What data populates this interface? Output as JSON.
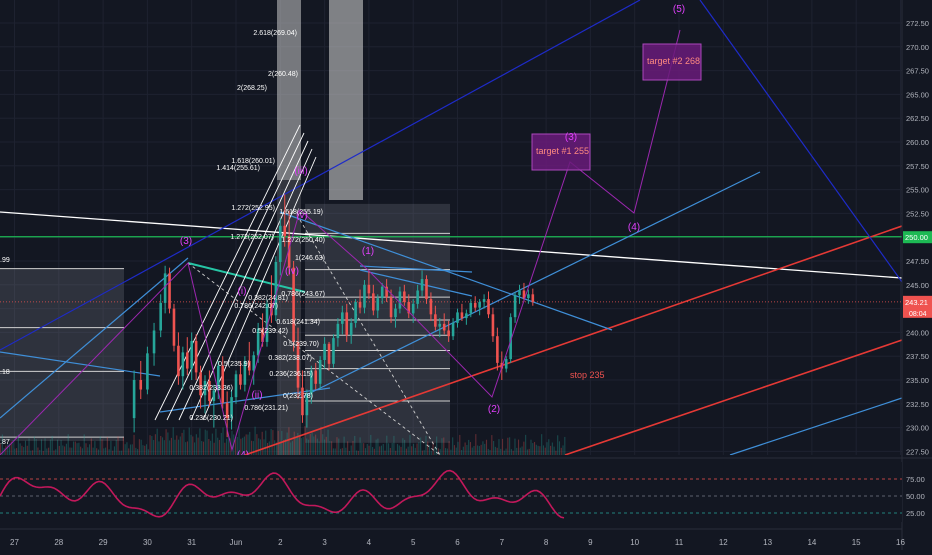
{
  "chart_data": {
    "type": "candlestick",
    "symbol_note": "",
    "price_axis": {
      "ylim": [
        225.0,
        276.0
      ],
      "ticks": [
        227.5,
        230.0,
        232.5,
        235.0,
        237.5,
        240.0,
        242.5,
        245.0,
        247.5,
        250.0,
        252.5,
        255.0,
        257.5,
        260.0,
        262.5,
        265.0,
        267.5,
        270.0,
        272.5
      ],
      "tick_labels": [
        "227.50",
        "230.00",
        "232.50",
        "235.00",
        "237.50",
        "240.00",
        "242.50",
        "245.00",
        "247.50",
        "250.00",
        "252.50",
        "255.00",
        "257.50",
        "260.00",
        "262.50",
        "265.00",
        "267.50",
        "270.00",
        "272.50"
      ],
      "current_price_label": "243.21",
      "current_price": 243.21,
      "countdown_label": "08:04",
      "green_level_label": "250.00",
      "green_level": 250.0
    },
    "time_axis": {
      "labels": [
        "27",
        "28",
        "29",
        "30",
        "31",
        "Jun",
        "2",
        "3",
        "4",
        "5",
        "6",
        "7",
        "8",
        "9",
        "10",
        "11",
        "12",
        "13",
        "14",
        "15",
        "16"
      ],
      "days": [
        -5,
        -4,
        -3,
        -2,
        -1,
        0,
        1,
        2,
        3,
        4,
        5,
        6,
        7,
        8,
        9,
        10,
        11,
        12,
        13,
        14,
        15
      ]
    },
    "left_edge_labels": [
      ".99",
      ".18",
      ".87"
    ],
    "candles": [
      [
        -2.3,
        231.0,
        236.0,
        229.5,
        235.0
      ],
      [
        -2.15,
        235.0,
        237.0,
        233.0,
        234.0
      ],
      [
        -2.0,
        234.0,
        238.5,
        233.5,
        237.8
      ],
      [
        -1.85,
        237.8,
        241.0,
        236.5,
        240.2
      ],
      [
        -1.7,
        240.2,
        244.0,
        239.5,
        243.1
      ],
      [
        -1.6,
        243.1,
        247.0,
        242.0,
        246.2
      ],
      [
        -1.5,
        246.2,
        246.8,
        242.0,
        242.5
      ],
      [
        -1.4,
        242.5,
        243.0,
        238.0,
        238.6
      ],
      [
        -1.3,
        238.6,
        240.0,
        234.5,
        235.4
      ],
      [
        -1.2,
        235.4,
        238.5,
        234.0,
        237.9
      ],
      [
        -1.1,
        237.9,
        239.5,
        235.5,
        236.2
      ],
      [
        -1.0,
        236.2,
        240.0,
        235.0,
        239.1
      ],
      [
        -0.9,
        239.1,
        239.8,
        235.0,
        235.8
      ],
      [
        -0.8,
        235.8,
        236.5,
        232.0,
        233.4
      ],
      [
        -0.7,
        233.4,
        235.5,
        231.5,
        234.9
      ],
      [
        -0.6,
        234.9,
        236.0,
        232.2,
        232.8
      ],
      [
        -0.5,
        232.8,
        234.5,
        230.0,
        233.9
      ],
      [
        -0.4,
        233.9,
        237.0,
        233.0,
        236.5
      ],
      [
        -0.3,
        236.5,
        237.5,
        232.0,
        232.6
      ],
      [
        -0.2,
        232.6,
        233.8,
        229.0,
        231.0
      ],
      [
        -0.1,
        231.0,
        234.0,
        229.8,
        233.2
      ],
      [
        0.0,
        233.2,
        236.0,
        232.5,
        235.6
      ],
      [
        0.1,
        235.6,
        237.0,
        234.0,
        234.5
      ],
      [
        0.2,
        234.5,
        237.5,
        233.8,
        237.0
      ],
      [
        0.3,
        237.0,
        239.0,
        235.5,
        236.0
      ],
      [
        0.4,
        236.0,
        238.0,
        234.5,
        237.6
      ],
      [
        0.5,
        237.6,
        241.0,
        236.8,
        240.4
      ],
      [
        0.6,
        240.4,
        242.0,
        238.5,
        239.0
      ],
      [
        0.7,
        239.0,
        243.5,
        238.5,
        243.0
      ],
      [
        0.8,
        243.0,
        246.0,
        241.0,
        241.8
      ],
      [
        0.9,
        241.8,
        248.0,
        241.2,
        247.4
      ],
      [
        1.0,
        247.4,
        252.0,
        246.0,
        251.2
      ],
      [
        1.1,
        251.2,
        254.5,
        249.0,
        250.1
      ],
      [
        1.2,
        250.1,
        252.8,
        246.0,
        246.8
      ],
      [
        1.3,
        246.8,
        247.5,
        238.0,
        239.0
      ],
      [
        1.4,
        239.0,
        240.5,
        233.0,
        234.2
      ],
      [
        1.5,
        234.2,
        236.0,
        230.5,
        231.3
      ],
      [
        1.6,
        231.3,
        234.0,
        230.0,
        233.5
      ],
      [
        1.7,
        233.5,
        236.5,
        232.5,
        236.0
      ],
      [
        1.8,
        236.0,
        236.8,
        234.0,
        234.6
      ],
      [
        1.9,
        234.6,
        237.5,
        234.0,
        237.1
      ],
      [
        2.0,
        237.1,
        239.5,
        236.2,
        238.8
      ],
      [
        2.1,
        238.8,
        239.0,
        236.0,
        236.7
      ],
      [
        2.2,
        236.7,
        239.8,
        236.3,
        239.4
      ],
      [
        2.3,
        239.4,
        241.5,
        238.5,
        240.9
      ],
      [
        2.4,
        240.9,
        242.8,
        239.8,
        242.1
      ],
      [
        2.5,
        242.1,
        243.0,
        239.0,
        239.7
      ],
      [
        2.6,
        239.7,
        241.5,
        238.8,
        241.0
      ],
      [
        2.7,
        241.0,
        243.5,
        240.5,
        243.2
      ],
      [
        2.8,
        243.2,
        244.5,
        242.0,
        242.6
      ],
      [
        2.9,
        242.6,
        245.5,
        242.0,
        245.0
      ],
      [
        3.0,
        245.0,
        246.5,
        243.5,
        244.1
      ],
      [
        3.1,
        244.1,
        245.0,
        241.8,
        242.3
      ],
      [
        3.2,
        242.3,
        244.0,
        241.5,
        243.6
      ],
      [
        3.3,
        243.6,
        245.2,
        243.0,
        244.8
      ],
      [
        3.4,
        244.8,
        245.6,
        243.2,
        243.7
      ],
      [
        3.5,
        243.7,
        244.5,
        241.0,
        241.6
      ],
      [
        3.6,
        241.6,
        243.0,
        240.5,
        242.5
      ],
      [
        3.7,
        242.5,
        244.8,
        242.0,
        244.3
      ],
      [
        3.8,
        244.3,
        245.0,
        242.8,
        243.2
      ],
      [
        3.9,
        243.2,
        244.0,
        241.5,
        242.0
      ],
      [
        4.0,
        242.0,
        243.5,
        241.0,
        243.0
      ],
      [
        4.1,
        243.0,
        245.0,
        242.5,
        244.4
      ],
      [
        4.2,
        244.4,
        246.5,
        243.8,
        245.6
      ],
      [
        4.3,
        245.6,
        246.0,
        243.0,
        243.5
      ],
      [
        4.4,
        243.5,
        244.2,
        241.2,
        241.9
      ],
      [
        4.5,
        241.9,
        242.8,
        240.2,
        240.6
      ],
      [
        4.6,
        240.6,
        241.5,
        239.5,
        240.9
      ],
      [
        4.7,
        240.9,
        242.0,
        239.8,
        240.2
      ],
      [
        4.8,
        240.2,
        241.2,
        239.0,
        239.6
      ],
      [
        4.9,
        239.6,
        241.5,
        239.2,
        241.0
      ],
      [
        5.0,
        241.0,
        242.5,
        240.5,
        242.1
      ],
      [
        5.1,
        242.1,
        243.0,
        241.2,
        241.5
      ],
      [
        5.2,
        241.5,
        242.4,
        240.8,
        242.0
      ],
      [
        5.3,
        242.0,
        243.5,
        241.6,
        243.1
      ],
      [
        5.4,
        243.1,
        243.8,
        242.2,
        242.6
      ],
      [
        5.5,
        242.6,
        243.5,
        241.8,
        243.2
      ],
      [
        5.6,
        243.2,
        244.0,
        242.5,
        243.5
      ],
      [
        5.7,
        243.5,
        244.3,
        241.5,
        241.9
      ],
      [
        5.8,
        241.9,
        242.6,
        239.0,
        239.6
      ],
      [
        5.9,
        239.6,
        240.5,
        236.0,
        236.8
      ],
      [
        6.0,
        236.8,
        238.0,
        235.0,
        236.2
      ],
      [
        6.1,
        236.2,
        237.5,
        235.8,
        237.2
      ],
      [
        6.2,
        237.2,
        242.0,
        236.8,
        241.6
      ],
      [
        6.3,
        241.6,
        244.2,
        241.0,
        243.9
      ],
      [
        6.4,
        243.9,
        245.0,
        243.0,
        244.4
      ],
      [
        6.5,
        244.4,
        245.2,
        243.2,
        243.6
      ],
      [
        6.6,
        243.6,
        244.5,
        243.0,
        244.0
      ],
      [
        6.7,
        244.0,
        244.6,
        242.8,
        243.21
      ]
    ],
    "fib_levels_left": [
      "0.236(230.21)",
      "0.382(233.36)",
      "0.5(235.9)",
      "0.5(235.9)",
      "0.382(233.36)",
      "0.786(242.07)",
      "0.382(24.81)",
      "0.5(239.42)",
      "0.786(231.21)"
    ],
    "fib_top_labels": [
      "2.618(269.04)",
      "2(268.25)",
      "2(260.48)",
      "1.618(260.01)",
      "1.414(255.61)",
      "1.272(252.95)",
      "1.618(255.19)",
      "1.272(252.07)",
      "1.272(250.40)",
      "1(246.63)",
      "0.786(243.67)",
      "0.618(241.34)",
      "0.5(239.70)",
      "0.382(238.07)",
      "0.236(236.15)",
      "0(232.78)"
    ],
    "wave_labels": {
      "w3_left": "(3)",
      "w_i": "(i)",
      "w_ii": "(ii)",
      "w_iii": "(iii)",
      "w_iv": "(iv)",
      "w_v": "(v)",
      "w4_bottom": "(4)",
      "w1": "(1)",
      "w2": "(2)",
      "w3": "(3)",
      "w4": "(4)",
      "w5": "(5)"
    },
    "targets": [
      {
        "label": "target #1 255",
        "price": 255.0
      },
      {
        "label": "target #2 268",
        "price": 268.0
      }
    ],
    "stop": {
      "label": "stop 235",
      "price": 235.0
    },
    "oscillator": {
      "ticks": [
        25.0,
        50.0,
        75.0
      ],
      "tick_labels": [
        "25.00",
        "50.00",
        "75.00"
      ],
      "ylim": [
        10,
        90
      ]
    },
    "colors": {
      "background": "#131722",
      "up": "#26a69a",
      "down": "#ef5350",
      "purple": "#9c27b0",
      "green_line": "#1db954",
      "red_trend": "#e53935",
      "blue_trend": "#3f8fd8",
      "navy_trend": "#1e2bc8",
      "white_trend": "#ffffff",
      "box": "#e5e5e5",
      "target_box": "#6a1b7a",
      "target_text": "#ff8a80",
      "wave_text": "#e040fb",
      "osc_line": "#c2185b",
      "axis_text": "#b2b5be"
    }
  }
}
